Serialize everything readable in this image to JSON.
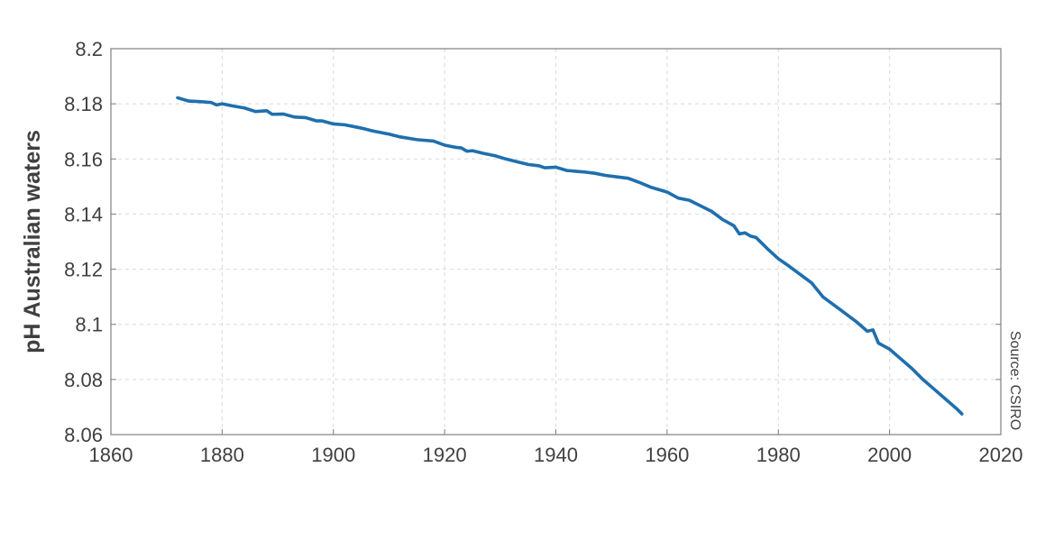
{
  "chart_data": {
    "type": "line",
    "title": "",
    "xlabel": "",
    "ylabel": "pH Australian waters",
    "xlim": [
      1860,
      2020
    ],
    "ylim": [
      8.06,
      8.2
    ],
    "x_ticks": [
      1860,
      1880,
      1900,
      1920,
      1940,
      1960,
      1980,
      2000,
      2020
    ],
    "y_ticks": [
      8.06,
      8.08,
      8.1,
      8.12,
      8.14,
      8.16,
      8.18,
      8.2
    ],
    "x_tick_labels": [
      "1860",
      "1880",
      "1900",
      "1920",
      "1940",
      "1960",
      "1980",
      "2000",
      "2020"
    ],
    "y_tick_labels": [
      "8.06",
      "8.08",
      "8.1",
      "8.12",
      "8.14",
      "8.16",
      "8.18",
      "8.2"
    ],
    "grid": true,
    "legend": "none",
    "annotation": "Source: CSIRO",
    "series": [
      {
        "color": "#1f6fae",
        "x": [
          1872,
          1874,
          1876,
          1878,
          1879,
          1880,
          1882,
          1884,
          1886,
          1888,
          1889,
          1891,
          1893,
          1895,
          1897,
          1898,
          1900,
          1902,
          1904,
          1905,
          1907,
          1910,
          1912,
          1915,
          1918,
          1920,
          1922,
          1923,
          1924,
          1925,
          1927,
          1929,
          1931,
          1933,
          1935,
          1937,
          1938,
          1940,
          1942,
          1945,
          1947,
          1949,
          1951,
          1953,
          1955,
          1957,
          1960,
          1962,
          1964,
          1966,
          1968,
          1970,
          1972,
          1973,
          1974,
          1975,
          1976,
          1978,
          1980,
          1982,
          1984,
          1986,
          1988,
          1990,
          1992,
          1994,
          1996,
          1997,
          1998,
          2000,
          2002,
          2004,
          2006,
          2008,
          2010,
          2012,
          2013
        ],
        "y": [
          8.1822,
          8.181,
          8.1808,
          8.1805,
          8.1796,
          8.18,
          8.1792,
          8.1785,
          8.1772,
          8.1775,
          8.1762,
          8.1763,
          8.1752,
          8.175,
          8.1738,
          8.1738,
          8.1727,
          8.1724,
          8.1716,
          8.1712,
          8.1702,
          8.169,
          8.168,
          8.167,
          8.1665,
          8.165,
          8.1642,
          8.164,
          8.1628,
          8.163,
          8.162,
          8.1612,
          8.16,
          8.159,
          8.158,
          8.1575,
          8.1568,
          8.157,
          8.1558,
          8.1553,
          8.1548,
          8.154,
          8.1535,
          8.153,
          8.1515,
          8.1498,
          8.148,
          8.1458,
          8.145,
          8.143,
          8.141,
          8.138,
          8.1358,
          8.1328,
          8.1332,
          8.132,
          8.1315,
          8.1275,
          8.1238,
          8.121,
          8.118,
          8.115,
          8.11,
          8.107,
          8.104,
          8.101,
          8.0975,
          8.098,
          8.0932,
          8.091,
          8.0875,
          8.084,
          8.08,
          8.0765,
          8.073,
          8.0695,
          8.0675
        ]
      }
    ]
  }
}
